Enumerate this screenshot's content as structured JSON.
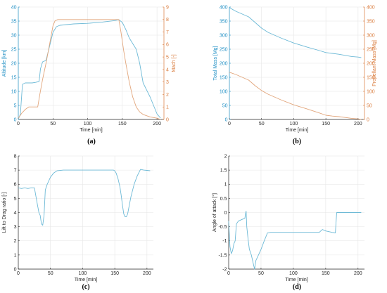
{
  "colors": {
    "blue": "#6cb9d6",
    "orange": "#e2a67c",
    "axis": "#262626",
    "grid": "#e6e6e6",
    "blue_axis": "#1f8fc4",
    "orange_axis": "#d97a3a"
  },
  "chart_data": [
    {
      "panel": "a",
      "type": "line",
      "caption": "(a)",
      "xlabel": "Time [min]",
      "ylabel": "Altitude [km]",
      "ylabel_right": "Mach [-]",
      "xlim": [
        0,
        210
      ],
      "ylim": [
        0,
        40
      ],
      "ylim_right": [
        0,
        9
      ],
      "xticks": [
        0,
        50,
        100,
        150,
        200
      ],
      "yticks": [
        0,
        5,
        10,
        15,
        20,
        25,
        30,
        35,
        40
      ],
      "yticks_right": [
        0,
        1,
        2,
        3,
        4,
        5,
        6,
        7,
        8,
        9
      ],
      "grid": true,
      "series": [
        {
          "axis": "left",
          "color": "blue",
          "x": [
            0,
            3,
            6,
            10,
            15,
            20,
            25,
            30,
            32,
            35,
            40,
            45,
            50,
            55,
            60,
            80,
            100,
            120,
            140,
            145,
            150,
            155,
            160,
            165,
            170,
            175,
            180,
            190,
            200,
            205
          ],
          "y": [
            0,
            2,
            12.5,
            13,
            13,
            13,
            13.2,
            13.5,
            18,
            20.5,
            21,
            26,
            31,
            33,
            33.5,
            34,
            34.2,
            34.6,
            35.2,
            35.5,
            34.5,
            32,
            29,
            27,
            25,
            20,
            13,
            8,
            2,
            0.5
          ]
        },
        {
          "axis": "right",
          "color": "orange",
          "x": [
            0,
            5,
            10,
            15,
            20,
            25,
            28,
            31,
            35,
            40,
            45,
            50,
            53,
            57,
            60,
            100,
            140,
            145,
            148,
            152,
            155,
            160,
            165,
            170,
            175,
            180,
            190,
            200,
            205
          ],
          "y": [
            0.1,
            0.5,
            0.8,
            1.0,
            1.0,
            1.0,
            1.0,
            2.0,
            3.2,
            4.5,
            6.0,
            7.5,
            7.9,
            8.0,
            8.0,
            8.0,
            8.0,
            8.0,
            7.0,
            5.5,
            4.5,
            3.0,
            1.8,
            1.0,
            0.6,
            0.4,
            0.2,
            0.1,
            0
          ]
        }
      ]
    },
    {
      "panel": "b",
      "type": "line",
      "caption": "(b)",
      "xlabel": "Time [min]",
      "ylabel": "Total Mass [Mg]",
      "ylabel_right": "Propellant Mass [Mg]",
      "xlim": [
        0,
        210
      ],
      "ylim": [
        0,
        400
      ],
      "ylim_right": [
        0,
        400
      ],
      "xticks": [
        0,
        50,
        100,
        150,
        200
      ],
      "yticks": [
        0,
        50,
        100,
        150,
        200,
        250,
        300,
        350,
        400
      ],
      "yticks_right": [
        0,
        50,
        100,
        150,
        200,
        250,
        300,
        350,
        400
      ],
      "grid": true,
      "series": [
        {
          "axis": "left",
          "color": "blue",
          "x": [
            0,
            10,
            20,
            30,
            40,
            50,
            60,
            80,
            100,
            120,
            140,
            150,
            160,
            170,
            180,
            190,
            200,
            205
          ],
          "y": [
            398,
            385,
            375,
            365,
            345,
            325,
            310,
            290,
            272,
            258,
            245,
            238,
            235,
            232,
            228,
            224,
            222,
            220
          ]
        },
        {
          "axis": "right",
          "color": "orange",
          "x": [
            0,
            10,
            20,
            30,
            40,
            50,
            60,
            80,
            100,
            120,
            140,
            150,
            160,
            170,
            180,
            190,
            200,
            205
          ],
          "y": [
            168,
            160,
            150,
            140,
            120,
            103,
            90,
            70,
            52,
            38,
            23,
            15,
            12,
            10,
            7,
            4,
            2,
            0
          ]
        }
      ]
    },
    {
      "panel": "c",
      "type": "line",
      "caption": "(c)",
      "xlabel": "Time [min]",
      "ylabel": "Lift to Drag ratio [-]",
      "xlim": [
        0,
        210
      ],
      "ylim": [
        0,
        8
      ],
      "xticks": [
        0,
        50,
        100,
        150,
        200
      ],
      "yticks": [
        0,
        1,
        2,
        3,
        4,
        5,
        6,
        7,
        8
      ],
      "grid": true,
      "series": [
        {
          "color": "blue",
          "x": [
            0,
            5,
            10,
            15,
            20,
            25,
            28,
            30,
            32,
            34,
            36,
            38,
            40,
            42,
            45,
            50,
            55,
            60,
            70,
            80,
            100,
            120,
            140,
            148,
            150,
            152,
            155,
            158,
            160,
            162,
            164,
            166,
            168,
            170,
            172,
            175,
            180,
            185,
            190,
            195,
            200,
            205
          ],
          "y": [
            5.75,
            5.7,
            5.75,
            5.7,
            5.75,
            5.75,
            5.0,
            4.5,
            4.0,
            3.8,
            3.2,
            3.1,
            3.8,
            5.6,
            6.0,
            6.5,
            6.8,
            6.95,
            7.0,
            7.0,
            7.0,
            7.0,
            7.0,
            7.0,
            6.95,
            6.8,
            6.4,
            5.8,
            5.2,
            4.5,
            3.9,
            3.7,
            3.7,
            3.9,
            4.4,
            5.1,
            6.0,
            6.6,
            7.05,
            7.0,
            6.98,
            6.95
          ]
        }
      ]
    },
    {
      "panel": "d",
      "type": "line",
      "caption": "(d)",
      "xlabel": "Time [min]",
      "ylabel": "Angle of attack [°]",
      "xlim": [
        0,
        210
      ],
      "ylim": [
        -2,
        2
      ],
      "xticks": [
        0,
        50,
        100,
        150,
        200
      ],
      "yticks": [
        -2,
        -1.5,
        -1,
        -0.5,
        0,
        0.5,
        1,
        1.5,
        2
      ],
      "grid": true,
      "series": [
        {
          "color": "blue",
          "x": [
            0,
            2,
            4,
            6,
            8,
            10,
            12,
            15,
            20,
            25,
            26,
            27,
            28,
            30,
            32,
            35,
            38,
            40,
            42,
            45,
            50,
            55,
            60,
            65,
            80,
            100,
            120,
            140,
            145,
            150,
            160,
            165,
            167,
            170,
            180,
            190,
            200,
            205
          ],
          "y": [
            -0.3,
            -1.2,
            -1.45,
            -1.35,
            -1.1,
            -1.0,
            -0.4,
            -0.3,
            -0.25,
            -0.2,
            -0.05,
            0.05,
            -0.5,
            -0.95,
            -1.3,
            -1.5,
            -1.8,
            -2.0,
            -1.7,
            -1.55,
            -1.3,
            -1.0,
            -0.72,
            -0.7,
            -0.7,
            -0.7,
            -0.7,
            -0.7,
            -0.6,
            -0.65,
            -0.7,
            -0.72,
            0,
            0,
            0,
            0,
            0,
            0
          ]
        }
      ]
    }
  ]
}
